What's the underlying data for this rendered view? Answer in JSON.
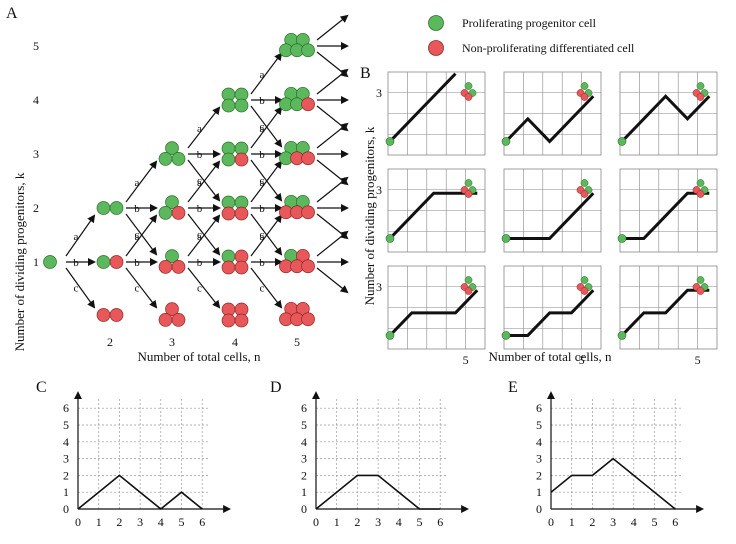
{
  "panels": {
    "a": "A",
    "b": "B",
    "c": "C",
    "d": "D",
    "e": "E"
  },
  "legend": {
    "proliferating": "Proliferating progenitor cell",
    "non_proliferating": "Non-proliferating differentiated cell"
  },
  "colors": {
    "progenitor": "#5cb85c",
    "differentiated": "#e8585a",
    "line": "#111111",
    "grid": "#999999"
  },
  "panel_a": {
    "ylabel": "Number of dividing progenitors, k",
    "xlabel": "Number of total cells, n",
    "x_ticks": [
      "2",
      "3",
      "4",
      "5"
    ],
    "y_ticks": [
      "1",
      "2",
      "3",
      "4",
      "5"
    ],
    "edge_labels": [
      "a",
      "b",
      "c"
    ]
  },
  "panel_b": {
    "ylabel": "Number of dividing progenitors, k",
    "xlabel": "Number of total cells, n",
    "y_tick": "3",
    "x_tick": "5"
  },
  "chart_data": [
    {
      "type": "line",
      "panel": "C",
      "x": [
        0,
        1,
        2,
        3,
        4,
        5,
        6
      ],
      "series": [
        {
          "values": [
            0,
            1,
            2,
            1,
            0,
            1,
            0
          ]
        }
      ],
      "x_ticks": [
        "0",
        "1",
        "2",
        "3",
        "4",
        "5",
        "6"
      ],
      "y_ticks": [
        "0",
        "1",
        "2",
        "3",
        "4",
        "5",
        "6"
      ],
      "xlim": [
        0,
        7
      ],
      "ylim": [
        0,
        6.6
      ],
      "grid": true
    },
    {
      "type": "line",
      "panel": "D",
      "x": [
        0,
        1,
        2,
        3,
        4,
        5,
        6
      ],
      "series": [
        {
          "values": [
            0,
            1,
            2,
            2,
            1,
            0,
            0
          ]
        }
      ],
      "x_ticks": [
        "0",
        "1",
        "2",
        "3",
        "4",
        "5",
        "6"
      ],
      "y_ticks": [
        "0",
        "1",
        "2",
        "3",
        "4",
        "5",
        "6"
      ],
      "xlim": [
        0,
        7
      ],
      "ylim": [
        0,
        6.6
      ],
      "grid": true
    },
    {
      "type": "line",
      "panel": "E",
      "x": [
        0,
        1,
        2,
        3,
        4,
        5,
        6
      ],
      "series": [
        {
          "values": [
            1,
            2,
            2,
            3,
            2,
            1,
            0
          ]
        }
      ],
      "x_ticks": [
        "0",
        "1",
        "2",
        "3",
        "4",
        "5",
        "6"
      ],
      "y_ticks": [
        "0",
        "1",
        "2",
        "3",
        "4",
        "5",
        "6"
      ],
      "xlim": [
        0,
        7
      ],
      "ylim": [
        0,
        6.6
      ],
      "grid": true
    }
  ],
  "b_paths": [
    [
      1,
      2,
      3,
      4
    ],
    [
      1,
      2,
      1,
      2,
      3
    ],
    [
      1,
      2,
      3,
      2,
      3
    ],
    [
      1,
      2,
      3,
      3,
      3
    ],
    [
      1,
      1,
      1,
      2,
      3
    ],
    [
      1,
      1,
      2,
      3,
      3
    ],
    [
      1,
      2,
      2,
      2,
      3
    ],
    [
      1,
      1,
      2,
      2,
      3
    ],
    [
      1,
      2,
      2,
      3,
      3
    ]
  ]
}
